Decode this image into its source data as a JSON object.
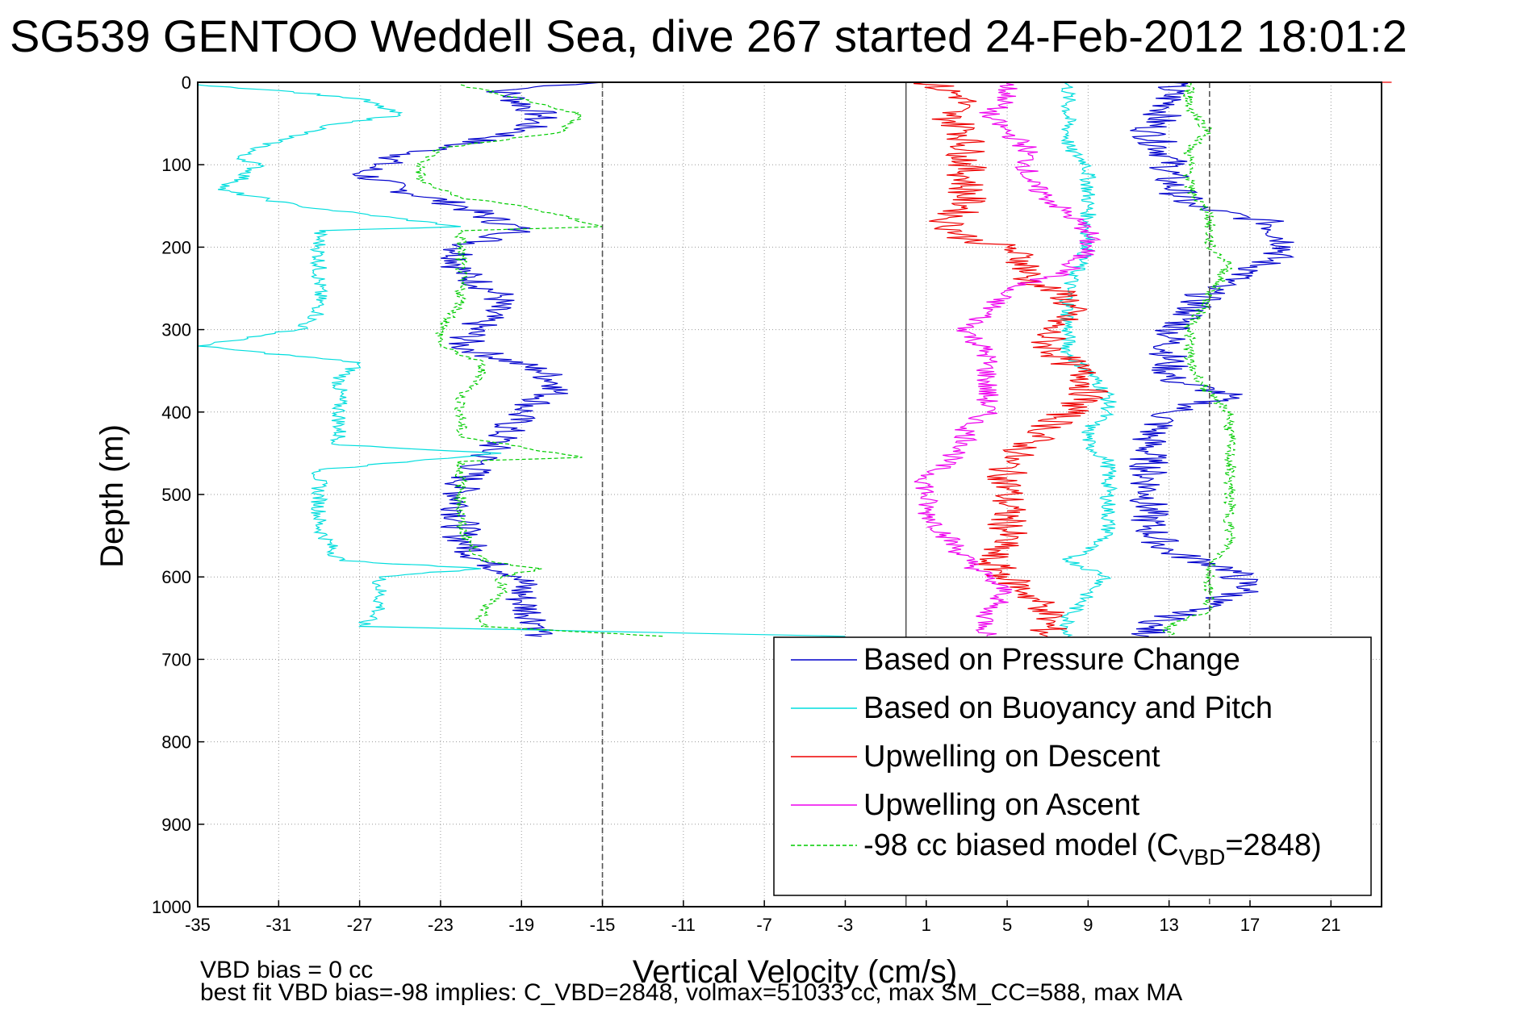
{
  "chart_data": {
    "type": "line",
    "title": "SG539 GENTOO Weddell Sea, dive 267 started 24-Feb-2012 18:01:2",
    "xlabel": "Vertical Velocity (cm/s)",
    "ylabel": "Depth (m)",
    "xlim": [
      -35,
      23.5
    ],
    "ylim": [
      0,
      1000
    ],
    "y_reversed": true,
    "grid": true,
    "xticks": [
      "-35",
      "-31",
      "-27",
      "-23",
      "-19",
      "-15",
      "-11",
      "-7",
      "-3",
      "1",
      "5",
      "9",
      "13",
      "17",
      "21"
    ],
    "yticks": [
      "0",
      "100",
      "200",
      "300",
      "400",
      "500",
      "600",
      "700",
      "800",
      "900",
      "1000"
    ],
    "reference_lines": [
      {
        "x": -15,
        "style": "dashed",
        "color": "#555555"
      },
      {
        "x": 0,
        "style": "solid",
        "color": "#555555"
      },
      {
        "x": 15,
        "style": "dashed",
        "color": "#555555"
      }
    ],
    "legend_position": "bottom-right",
    "series": [
      {
        "name": "Based on Pressure Change",
        "color": "#0000cc",
        "style": "solid",
        "noise": 1.0,
        "points": [
          [
            -15,
            0
          ],
          [
            -20,
            10
          ],
          [
            -18,
            40
          ],
          [
            -19,
            60
          ],
          [
            -25,
            90
          ],
          [
            -27,
            110
          ],
          [
            -25,
            130
          ],
          [
            -22,
            150
          ],
          [
            -19,
            180
          ],
          [
            -22,
            200
          ],
          [
            -22,
            230
          ],
          [
            -20,
            260
          ],
          [
            -21,
            290
          ],
          [
            -22,
            320
          ],
          [
            -18,
            350
          ],
          [
            -17,
            370
          ],
          [
            -19,
            400
          ],
          [
            -20,
            430
          ],
          [
            -21,
            460
          ],
          [
            -22,
            490
          ],
          [
            -22,
            520
          ],
          [
            -22,
            550
          ],
          [
            -21,
            580
          ],
          [
            -19,
            600
          ],
          [
            -19,
            630
          ],
          [
            -18,
            660
          ],
          [
            -18,
            672
          ],
          [
            13,
            0
          ],
          [
            13,
            30
          ],
          [
            12,
            60
          ],
          [
            13,
            90
          ],
          [
            13,
            120
          ],
          [
            14,
            150
          ],
          [
            18,
            170
          ],
          [
            19,
            200
          ],
          [
            17,
            230
          ],
          [
            15,
            250
          ],
          [
            14,
            280
          ],
          [
            13,
            310
          ],
          [
            13,
            340
          ],
          [
            13,
            360
          ],
          [
            16,
            380
          ],
          [
            13,
            400
          ],
          [
            12,
            430
          ],
          [
            12,
            460
          ],
          [
            12,
            500
          ],
          [
            12,
            540
          ],
          [
            13,
            570
          ],
          [
            16,
            590
          ],
          [
            17,
            615
          ],
          [
            14,
            640
          ],
          [
            12,
            660
          ],
          [
            12,
            672
          ]
        ]
      },
      {
        "name": "Based on Buoyancy and Pitch",
        "color": "#00dddd",
        "style": "solid",
        "noise": 0.4,
        "points": [
          [
            -35,
            3
          ],
          [
            -31,
            10
          ],
          [
            -27,
            20
          ],
          [
            -25,
            40
          ],
          [
            -28,
            50
          ],
          [
            -31,
            70
          ],
          [
            -33,
            90
          ],
          [
            -32,
            100
          ],
          [
            -33,
            120
          ],
          [
            -34,
            130
          ],
          [
            -30,
            150
          ],
          [
            -22,
            175
          ],
          [
            -29,
            180
          ],
          [
            -29,
            200
          ],
          [
            -29,
            240
          ],
          [
            -29,
            280
          ],
          [
            -30,
            300
          ],
          [
            -35,
            320
          ],
          [
            -27,
            340
          ],
          [
            -28,
            360
          ],
          [
            -28,
            400
          ],
          [
            -28,
            440
          ],
          [
            -20,
            450
          ],
          [
            -29,
            470
          ],
          [
            -29,
            500
          ],
          [
            -29,
            540
          ],
          [
            -28,
            580
          ],
          [
            -21,
            590
          ],
          [
            -26,
            600
          ],
          [
            -26,
            620
          ],
          [
            -26,
            640
          ],
          [
            -27,
            660
          ],
          [
            -3,
            672
          ],
          [
            8,
            0
          ],
          [
            8,
            20
          ],
          [
            8,
            60
          ],
          [
            8,
            80
          ],
          [
            9,
            100
          ],
          [
            9,
            150
          ],
          [
            9,
            200
          ],
          [
            8,
            250
          ],
          [
            8,
            300
          ],
          [
            8,
            330
          ],
          [
            9,
            350
          ],
          [
            10,
            380
          ],
          [
            10,
            400
          ],
          [
            9,
            420
          ],
          [
            9,
            440
          ],
          [
            10,
            460
          ],
          [
            10,
            500
          ],
          [
            10,
            550
          ],
          [
            8,
            580
          ],
          [
            10,
            600
          ],
          [
            9,
            620
          ],
          [
            8,
            650
          ],
          [
            8,
            672
          ]
        ]
      },
      {
        "name": "Upwelling on Descent",
        "color": "#ee0000",
        "style": "solid",
        "noise": 1.0,
        "points": [
          [
            24,
            0
          ],
          [
            1,
            0
          ],
          [
            3,
            20
          ],
          [
            2,
            40
          ],
          [
            3,
            60
          ],
          [
            3,
            90
          ],
          [
            3,
            120
          ],
          [
            3,
            150
          ],
          [
            2,
            170
          ],
          [
            3,
            190
          ],
          [
            5,
            200
          ],
          [
            6,
            220
          ],
          [
            6,
            240
          ],
          [
            8,
            260
          ],
          [
            8,
            280
          ],
          [
            7,
            300
          ],
          [
            7,
            320
          ],
          [
            8,
            340
          ],
          [
            9,
            360
          ],
          [
            9,
            380
          ],
          [
            8,
            400
          ],
          [
            7,
            420
          ],
          [
            6,
            440
          ],
          [
            5,
            460
          ],
          [
            5,
            480
          ],
          [
            5,
            500
          ],
          [
            5,
            520
          ],
          [
            5,
            550
          ],
          [
            4,
            580
          ],
          [
            5,
            600
          ],
          [
            6,
            620
          ],
          [
            7,
            640
          ],
          [
            7,
            660
          ],
          [
            7,
            672
          ]
        ]
      },
      {
        "name": "Upwelling on Ascent",
        "color": "#ee00ee",
        "style": "solid",
        "noise": 0.6,
        "points": [
          [
            5,
            0
          ],
          [
            5,
            20
          ],
          [
            4,
            40
          ],
          [
            5,
            60
          ],
          [
            6,
            80
          ],
          [
            6,
            100
          ],
          [
            6,
            120
          ],
          [
            7,
            140
          ],
          [
            8,
            160
          ],
          [
            9,
            180
          ],
          [
            9,
            200
          ],
          [
            8,
            230
          ],
          [
            5,
            250
          ],
          [
            4,
            280
          ],
          [
            3,
            300
          ],
          [
            4,
            330
          ],
          [
            4,
            360
          ],
          [
            4,
            400
          ],
          [
            3,
            420
          ],
          [
            3,
            440
          ],
          [
            2,
            460
          ],
          [
            1,
            480
          ],
          [
            1,
            500
          ],
          [
            1,
            520
          ],
          [
            2,
            550
          ],
          [
            3,
            580
          ],
          [
            4,
            600
          ],
          [
            5,
            620
          ],
          [
            4,
            640
          ],
          [
            4,
            660
          ],
          [
            4,
            672
          ]
        ]
      },
      {
        "name": "-98 cc biased model (C_VBD=2848)",
        "legend_label": "-98 cc biased model (C",
        "legend_sub": "VBD",
        "legend_suffix": "=2848)",
        "color": "#00cc00",
        "style": "dashed",
        "noise": 0.3,
        "points": [
          [
            -22,
            3
          ],
          [
            -19,
            20
          ],
          [
            -16,
            40
          ],
          [
            -17,
            60
          ],
          [
            -23,
            80
          ],
          [
            -24,
            100
          ],
          [
            -24,
            120
          ],
          [
            -22,
            140
          ],
          [
            -19,
            150
          ],
          [
            -15,
            175
          ],
          [
            -22,
            180
          ],
          [
            -22,
            200
          ],
          [
            -22,
            240
          ],
          [
            -22,
            270
          ],
          [
            -23,
            300
          ],
          [
            -23,
            320
          ],
          [
            -21,
            340
          ],
          [
            -21,
            360
          ],
          [
            -22,
            380
          ],
          [
            -22,
            400
          ],
          [
            -22,
            430
          ],
          [
            -16,
            455
          ],
          [
            -22,
            460
          ],
          [
            -22,
            500
          ],
          [
            -22,
            540
          ],
          [
            -21,
            580
          ],
          [
            -18,
            590
          ],
          [
            -20,
            600
          ],
          [
            -20,
            620
          ],
          [
            -21,
            640
          ],
          [
            -21,
            660
          ],
          [
            -12,
            672
          ],
          [
            14,
            0
          ],
          [
            14,
            30
          ],
          [
            15,
            60
          ],
          [
            14,
            80
          ],
          [
            14,
            100
          ],
          [
            14,
            130
          ],
          [
            15,
            160
          ],
          [
            15,
            200
          ],
          [
            16,
            220
          ],
          [
            15,
            260
          ],
          [
            14,
            300
          ],
          [
            14,
            340
          ],
          [
            15,
            380
          ],
          [
            16,
            400
          ],
          [
            16,
            440
          ],
          [
            16,
            480
          ],
          [
            16,
            520
          ],
          [
            16,
            560
          ],
          [
            15,
            590
          ],
          [
            15,
            620
          ],
          [
            15,
            640
          ],
          [
            13,
            660
          ],
          [
            13,
            672
          ]
        ]
      }
    ],
    "notes": [
      "VBD bias = 0 cc",
      "best fit VBD bias=-98 implies: C_VBD=2848, volmax=51033 cc, max SM_CC=588, max MA"
    ]
  }
}
